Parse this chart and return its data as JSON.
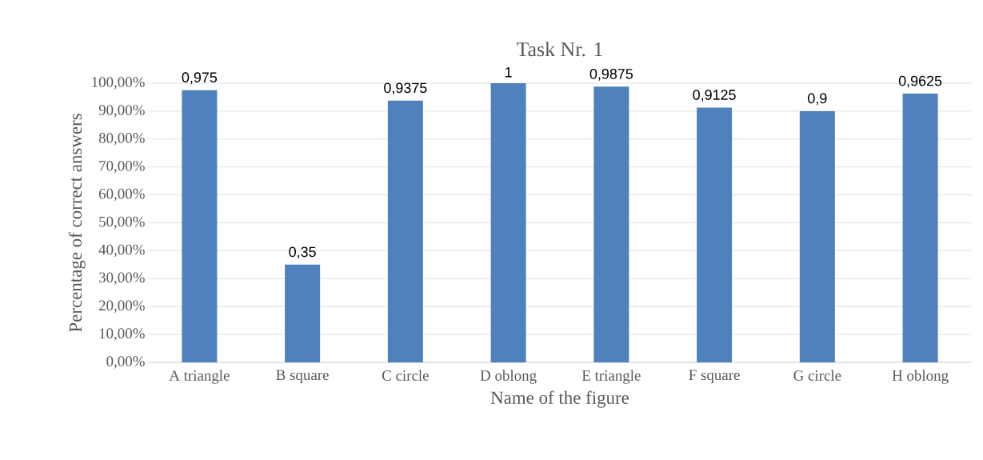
{
  "chart_data": {
    "type": "bar",
    "title": "Task Nr. 1",
    "xlabel": "Name of the figure",
    "ylabel": "Percentage of correct answers",
    "categories": [
      "A triangle",
      "B square",
      "C circle",
      "D oblong",
      "E triangle",
      "F square",
      "G circle",
      "H oblong"
    ],
    "values": [
      0.975,
      0.35,
      0.9375,
      1,
      0.9875,
      0.9125,
      0.9,
      0.9625
    ],
    "value_labels": [
      "0,975",
      "0,35",
      "0,9375",
      "1",
      "0,9875",
      "0,9125",
      "0,9",
      "0,9625"
    ],
    "color": "#4f81bd",
    "ylim": [
      0,
      1
    ],
    "yticks": [
      {
        "value": 0,
        "label": "0,00%"
      },
      {
        "value": 0.1,
        "label": "10,00%"
      },
      {
        "value": 0.2,
        "label": "20,00%"
      },
      {
        "value": 0.3,
        "label": "30,00%"
      },
      {
        "value": 0.4,
        "label": "40,00%"
      },
      {
        "value": 0.5,
        "label": "50,00%"
      },
      {
        "value": 0.6,
        "label": "60,00%"
      },
      {
        "value": 0.7,
        "label": "70,00%"
      },
      {
        "value": 0.8,
        "label": "80,00%"
      },
      {
        "value": 0.9,
        "label": "90,00%"
      },
      {
        "value": 1,
        "label": "100,00%"
      }
    ],
    "grid": "y"
  }
}
